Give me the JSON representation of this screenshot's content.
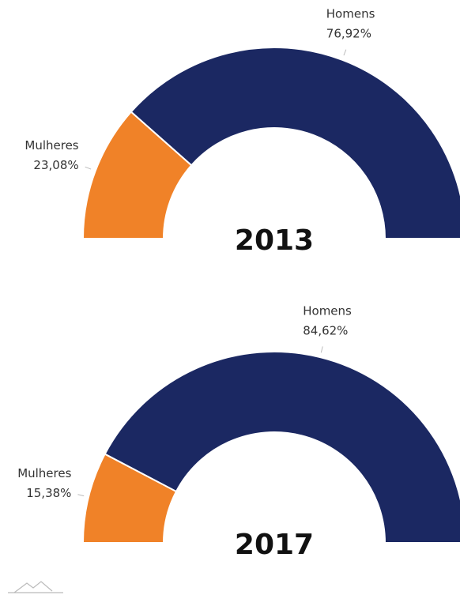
{
  "chart_data": [
    {
      "type": "pie",
      "title": "2013",
      "categories": [
        "Mulheres",
        "Homens"
      ],
      "values": [
        23.08,
        76.92
      ],
      "value_labels": [
        "23,08%",
        "76,92%"
      ],
      "colors": [
        "#f08228",
        "#1b2862"
      ]
    },
    {
      "type": "pie",
      "title": "2017",
      "categories": [
        "Mulheres",
        "Homens"
      ],
      "values": [
        15.38,
        84.62
      ],
      "value_labels": [
        "15,38%",
        "84,62%"
      ],
      "colors": [
        "#f08228",
        "#1b2862"
      ]
    }
  ]
}
